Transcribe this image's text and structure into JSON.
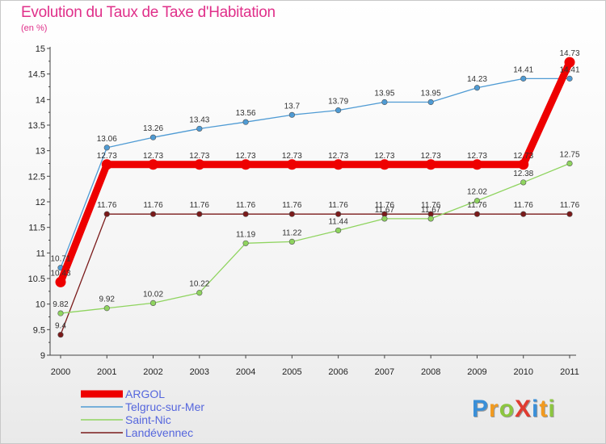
{
  "title": "Evolution du Taux de Taxe d'Habitation",
  "subtitle": "(en %)",
  "brand": "ProXiti",
  "brand_colors": [
    "#3a8fd8",
    "#f29a1e",
    "#8cc63f",
    "#e03c31",
    "#3a8fd8",
    "#f29a1e",
    "#8cc63f"
  ],
  "chart_data": {
    "type": "line",
    "x": [
      "2000",
      "2001",
      "2002",
      "2003",
      "2004",
      "2005",
      "2006",
      "2007",
      "2008",
      "2009",
      "2010",
      "2011"
    ],
    "ylim": [
      9,
      15
    ],
    "yticks": [
      "9",
      "9.5",
      "10",
      "10.5",
      "11",
      "11.5",
      "12",
      "12.5",
      "13",
      "13.5",
      "14",
      "14.5",
      "15"
    ],
    "grid": false,
    "legend_position": "bottom-left",
    "series": [
      {
        "name": "ARGOL",
        "color": "#ee0000",
        "values": [
          10.43,
          12.73,
          12.73,
          12.73,
          12.73,
          12.73,
          12.73,
          12.73,
          12.73,
          12.73,
          12.73,
          14.73
        ],
        "labels": [
          "10.43",
          "12.73",
          "12.73",
          "12.73",
          "12.73",
          "12.73",
          "12.73",
          "12.73",
          "12.73",
          "12.73",
          "12.73",
          "14.73"
        ]
      },
      {
        "name": "Telgruc-sur-Mer",
        "color": "#4f9bd4",
        "values": [
          10.71,
          13.06,
          13.26,
          13.43,
          13.56,
          13.7,
          13.79,
          13.95,
          13.95,
          14.23,
          14.41,
          14.41
        ],
        "labels": [
          "10.71",
          "13.06",
          "13.26",
          "13.43",
          "13.56",
          "13.7",
          "13.79",
          "13.95",
          "13.95",
          "14.23",
          "14.41",
          "14.41"
        ]
      },
      {
        "name": "Saint-Nic",
        "color": "#8fd45f",
        "values": [
          9.82,
          9.92,
          10.02,
          10.22,
          11.19,
          11.22,
          11.44,
          11.67,
          11.67,
          12.02,
          12.38,
          12.75
        ],
        "labels": [
          "9.82",
          "9.92",
          "10.02",
          "10.22",
          "11.19",
          "11.22",
          "11.44",
          "11.67",
          "11.67",
          "12.02",
          "12.38",
          "12.75"
        ]
      },
      {
        "name": "Landévennec",
        "color": "#7a1a1a",
        "values": [
          9.4,
          11.76,
          11.76,
          11.76,
          11.76,
          11.76,
          11.76,
          11.76,
          11.76,
          11.76,
          11.76,
          11.76
        ],
        "labels": [
          "9.4",
          "11.76",
          "11.76",
          "11.76",
          "11.76",
          "11.76",
          "11.76",
          "11.76",
          "11.76",
          "11.76",
          "11.76",
          "11.76"
        ]
      }
    ]
  }
}
